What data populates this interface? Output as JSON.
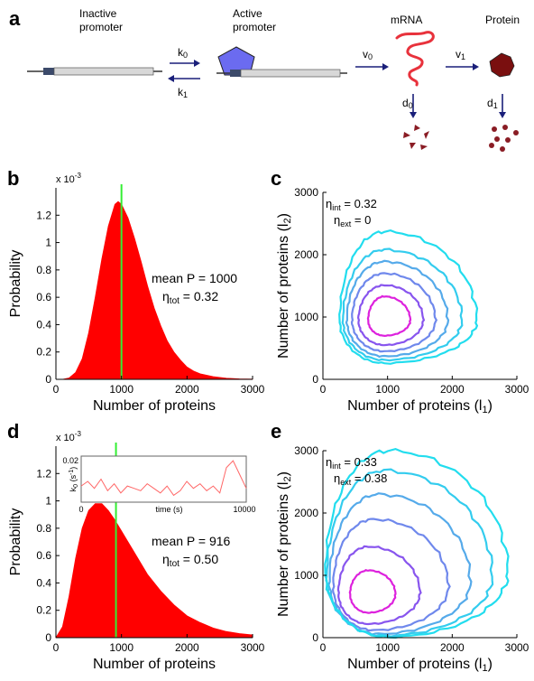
{
  "panel_a": {
    "letter": "a",
    "inactive_label": [
      "Inactive",
      "promoter"
    ],
    "active_label": [
      "Active",
      "promoter"
    ],
    "mrna_label": "mRNA",
    "protein_label": "Protein",
    "k0": "k0",
    "k1": "k1",
    "v0": "v0",
    "v1": "v1",
    "d0": "d0",
    "d1": "d1",
    "colors": {
      "arrow": "#1a1f7a",
      "pentagon": "#6b6bf0",
      "mrna": "#e8323c",
      "protein": "#7a0f0f"
    }
  },
  "chart_data": [
    {
      "panel": "b",
      "type": "area",
      "xlabel": "Number of proteins",
      "ylabel": "Probability",
      "scale_note": "x 10",
      "scale_exp": "-3",
      "xlim": [
        0,
        3000
      ],
      "ylim": [
        0,
        1.4
      ],
      "xticks": [
        "0",
        "1000",
        "2000",
        "3000"
      ],
      "yticks": [
        "0",
        "0.2",
        "0.4",
        "0.6",
        "0.8",
        "1",
        "1.2"
      ],
      "x": [
        0,
        100,
        200,
        300,
        400,
        500,
        600,
        700,
        800,
        900,
        950,
        1000,
        1100,
        1200,
        1300,
        1400,
        1500,
        1600,
        1700,
        1800,
        1900,
        2000,
        2100,
        2200,
        2400,
        2600,
        2800,
        3000
      ],
      "y": [
        0,
        0.0,
        0.01,
        0.05,
        0.15,
        0.34,
        0.6,
        0.88,
        1.12,
        1.28,
        1.3,
        1.28,
        1.18,
        1.03,
        0.86,
        0.68,
        0.52,
        0.39,
        0.28,
        0.2,
        0.14,
        0.09,
        0.06,
        0.04,
        0.02,
        0.008,
        0.003,
        0.001
      ],
      "mean_line_x": 1000,
      "mean_text": "mean P = 1000",
      "noise_text": {
        "sym": "η",
        "sub": "tot",
        "rest": " = 0.32"
      },
      "color_fill": "#ff0000",
      "color_mean": "#33ee33"
    },
    {
      "panel": "c",
      "type": "contour",
      "xlabel": "Number of proteins (l",
      "xlabel_sub": "1",
      "ylabel": "Number of proteins (l",
      "ylabel_sub": "2",
      "xlim": [
        0,
        3000
      ],
      "ylim": [
        0,
        3000
      ],
      "xticks": [
        "0",
        "1000",
        "2000",
        "3000"
      ],
      "yticks": [
        "0",
        "1000",
        "2000",
        "3000"
      ],
      "eta_int": "= 0.32",
      "eta_ext": "= 0",
      "contours": [
        {
          "cx": 950,
          "cy": 950,
          "rl": 250,
          "rr": 400,
          "rb": 250,
          "rt": 380,
          "color": "#dd22dd"
        },
        {
          "cx": 950,
          "cy": 950,
          "rl": 400,
          "rr": 600,
          "rb": 400,
          "rt": 560,
          "color": "#8855ee"
        },
        {
          "cx": 950,
          "cy": 950,
          "rl": 500,
          "rr": 790,
          "rb": 500,
          "rt": 750,
          "color": "#6f88ec"
        },
        {
          "cx": 950,
          "cy": 950,
          "rl": 580,
          "rr": 980,
          "rb": 580,
          "rt": 940,
          "color": "#55aaea"
        },
        {
          "cx": 950,
          "cy": 950,
          "rl": 640,
          "rr": 1200,
          "rb": 640,
          "rt": 1130,
          "color": "#33ccee"
        },
        {
          "cx": 950,
          "cy": 950,
          "rl": 690,
          "rr": 1430,
          "rb": 690,
          "rt": 1420,
          "color": "#22ddee"
        }
      ]
    },
    {
      "panel": "d",
      "type": "area",
      "xlabel": "Number of proteins",
      "ylabel": "Probability",
      "scale_note": "x 10",
      "scale_exp": "-3",
      "xlim": [
        0,
        3000
      ],
      "ylim": [
        0,
        1.4
      ],
      "xticks": [
        "0",
        "1000",
        "2000",
        "3000"
      ],
      "yticks": [
        "0",
        "0.2",
        "0.4",
        "0.6",
        "0.8",
        "1",
        "1.2"
      ],
      "x": [
        0,
        100,
        200,
        300,
        400,
        500,
        600,
        700,
        800,
        900,
        1000,
        1100,
        1200,
        1400,
        1600,
        1800,
        2000,
        2200,
        2400,
        2600,
        2800,
        3000
      ],
      "y": [
        0,
        0.08,
        0.3,
        0.58,
        0.8,
        0.93,
        0.98,
        0.98,
        0.93,
        0.86,
        0.78,
        0.7,
        0.62,
        0.46,
        0.34,
        0.24,
        0.16,
        0.11,
        0.07,
        0.045,
        0.03,
        0.02
      ],
      "mean_line_x": 916,
      "mean_text": "mean P = 916",
      "noise_text": {
        "sym": "η",
        "sub": "tot",
        "rest": " = 0.50"
      },
      "color_fill": "#ff0000",
      "color_mean": "#33ee33",
      "inset": {
        "ylabel": "k",
        "ylabel_sub": "0",
        "ylabel_unit": " (s",
        "ylabel_exp": "-1",
        "ytop": "0.02",
        "ybottom": "0",
        "xleft": "0",
        "xright": "10000",
        "xlabel": "time (s)",
        "xlim": [
          0,
          10000
        ],
        "ylim": [
          0,
          0.02
        ],
        "x": [
          0,
          400,
          800,
          1200,
          1600,
          2000,
          2400,
          2800,
          3200,
          3600,
          4000,
          4400,
          4800,
          5200,
          5600,
          6000,
          6400,
          6800,
          7200,
          7600,
          8000,
          8400,
          8800,
          9200,
          9600,
          10000
        ],
        "y": [
          0.007,
          0.009,
          0.006,
          0.01,
          0.005,
          0.008,
          0.004,
          0.007,
          0.006,
          0.005,
          0.008,
          0.006,
          0.004,
          0.007,
          0.003,
          0.005,
          0.009,
          0.006,
          0.008,
          0.005,
          0.007,
          0.004,
          0.015,
          0.018,
          0.012,
          0.006
        ],
        "color": "#ff6666"
      }
    },
    {
      "panel": "e",
      "type": "contour",
      "xlabel": "Number of proteins (l",
      "xlabel_sub": "1",
      "ylabel": "Number of proteins (l",
      "ylabel_sub": "2",
      "xlim": [
        0,
        3000
      ],
      "ylim": [
        0,
        3000
      ],
      "xticks": [
        "0",
        "1000",
        "2000",
        "3000"
      ],
      "yticks": [
        "0",
        "1000",
        "2000",
        "3000"
      ],
      "eta_int": "= 0.33",
      "eta_ext": "= 0.38",
      "contours": [
        {
          "cx": 700,
          "cy": 700,
          "rl": 280,
          "rr": 420,
          "rb": 300,
          "rt": 380,
          "color": "#dd22dd"
        },
        {
          "cx": 700,
          "cy": 720,
          "rl": 460,
          "rr": 800,
          "rb": 500,
          "rt": 740,
          "color": "#8855ee"
        },
        {
          "cx": 780,
          "cy": 820,
          "rl": 620,
          "rr": 1160,
          "rb": 700,
          "rt": 1080,
          "color": "#6f88ec"
        },
        {
          "cx": 860,
          "cy": 900,
          "rl": 760,
          "rr": 1420,
          "rb": 840,
          "rt": 1400,
          "color": "#55aaea"
        },
        {
          "cx": 940,
          "cy": 980,
          "rl": 880,
          "rr": 1680,
          "rb": 950,
          "rt": 1700,
          "color": "#33ccee"
        },
        {
          "cx": 1000,
          "cy": 1050,
          "rl": 960,
          "rr": 1860,
          "rb": 1040,
          "rt": 1950,
          "color": "#22ddee"
        }
      ]
    }
  ]
}
